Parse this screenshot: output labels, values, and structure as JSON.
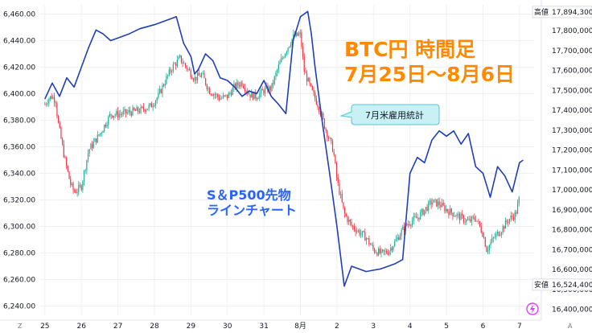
{
  "chart_data": {
    "type": "line",
    "title_lines": [
      "BTC円 時間足",
      "7月25日〜8月6日"
    ],
    "series": [
      {
        "name": "S＆P500先物 ラインチャート",
        "axis": "left",
        "color": "#1e3fb8",
        "x": [
          0,
          0.2,
          0.4,
          0.6,
          0.8,
          1.0,
          1.2,
          1.4,
          1.6,
          1.8,
          2.0,
          2.3,
          2.6,
          3.0,
          3.4,
          3.6,
          3.8,
          4.0,
          4.1,
          4.2,
          4.4,
          4.6,
          4.8,
          5.0,
          5.2,
          5.4,
          5.6,
          5.8,
          6.0,
          6.2,
          6.4,
          6.6,
          6.8,
          7.0,
          7.2,
          7.3,
          7.4,
          7.6,
          7.8,
          8.0,
          8.2,
          8.4,
          8.6,
          8.8,
          9.0,
          9.2,
          9.4,
          9.6,
          9.8,
          10.0,
          10.2,
          10.4,
          10.6,
          10.8,
          11.0,
          11.2,
          11.4,
          11.6,
          11.8,
          12.0,
          12.2,
          12.4,
          12.6,
          12.8,
          13.0,
          13.1
        ],
        "y": [
          6396,
          6408,
          6398,
          6412,
          6405,
          6420,
          6435,
          6448,
          6445,
          6440,
          6442,
          6445,
          6449,
          6452,
          6456,
          6458,
          6438,
          6428,
          6415,
          6418,
          6430,
          6425,
          6412,
          6410,
          6405,
          6398,
          6402,
          6400,
          6410,
          6398,
          6392,
          6385,
          6440,
          6458,
          6462,
          6445,
          6420,
          6378,
          6340,
          6300,
          6255,
          6270,
          6268,
          6266,
          6267,
          6268,
          6270,
          6272,
          6275,
          6340,
          6352,
          6348,
          6365,
          6372,
          6368,
          6372,
          6362,
          6370,
          6345,
          6340,
          6322,
          6345,
          6338,
          6326,
          6348,
          6350
        ]
      }
    ],
    "candles": {
      "name": "BTC円 時間足",
      "axis": "right",
      "x_start": 0,
      "x_step": 0.037,
      "bull_color": "#22ab94",
      "bear_color": "#f23645",
      "closes_anchor": [
        [
          0,
          17430
        ],
        [
          0.1,
          17460
        ],
        [
          0.2,
          17470
        ],
        [
          0.3,
          17450
        ],
        [
          0.35,
          17350
        ],
        [
          0.4,
          17300
        ],
        [
          0.55,
          17150
        ],
        [
          0.7,
          17030
        ],
        [
          0.8,
          16990
        ],
        [
          0.9,
          17000
        ],
        [
          1.0,
          17020
        ],
        [
          1.2,
          17200
        ],
        [
          1.5,
          17280
        ],
        [
          1.8,
          17380
        ],
        [
          2.0,
          17380
        ],
        [
          2.3,
          17390
        ],
        [
          2.6,
          17400
        ],
        [
          2.9,
          17420
        ],
        [
          3.1,
          17470
        ],
        [
          3.3,
          17550
        ],
        [
          3.5,
          17620
        ],
        [
          3.7,
          17660
        ],
        [
          3.9,
          17610
        ],
        [
          4.1,
          17560
        ],
        [
          4.3,
          17580
        ],
        [
          4.5,
          17500
        ],
        [
          4.8,
          17460
        ],
        [
          5.0,
          17470
        ],
        [
          5.2,
          17520
        ],
        [
          5.4,
          17540
        ],
        [
          5.6,
          17480
        ],
        [
          5.8,
          17470
        ],
        [
          6.0,
          17500
        ],
        [
          6.2,
          17510
        ],
        [
          6.4,
          17620
        ],
        [
          6.6,
          17700
        ],
        [
          6.8,
          17770
        ],
        [
          7.0,
          17780
        ],
        [
          7.1,
          17600
        ],
        [
          7.3,
          17500
        ],
        [
          7.5,
          17420
        ],
        [
          7.7,
          17300
        ],
        [
          7.9,
          17200
        ],
        [
          8.0,
          17050
        ],
        [
          8.2,
          16880
        ],
        [
          8.4,
          16820
        ],
        [
          8.6,
          16790
        ],
        [
          8.8,
          16760
        ],
        [
          9.0,
          16700
        ],
        [
          9.2,
          16680
        ],
        [
          9.4,
          16690
        ],
        [
          9.6,
          16740
        ],
        [
          9.8,
          16800
        ],
        [
          10.0,
          16840
        ],
        [
          10.2,
          16860
        ],
        [
          10.4,
          16900
        ],
        [
          10.6,
          16940
        ],
        [
          10.8,
          16930
        ],
        [
          11.0,
          16900
        ],
        [
          11.2,
          16880
        ],
        [
          11.4,
          16860
        ],
        [
          11.6,
          16840
        ],
        [
          11.8,
          16860
        ],
        [
          12.0,
          16780
        ],
        [
          12.1,
          16700
        ],
        [
          12.3,
          16760
        ],
        [
          12.5,
          16800
        ],
        [
          12.7,
          16850
        ],
        [
          12.9,
          16880
        ],
        [
          13.0,
          16960
        ]
      ]
    },
    "x_axis": {
      "tick_labels": [
        "25",
        "26",
        "27",
        "28",
        "29",
        "30",
        "31",
        "8月",
        "2",
        "3",
        "4",
        "5",
        "6",
        "7"
      ],
      "tick_positions": [
        0,
        1,
        2,
        3,
        4,
        5,
        6,
        7,
        8,
        9,
        10,
        11,
        12,
        13
      ],
      "range": [
        -0.15,
        13.4
      ]
    },
    "y_axis_left": {
      "tick_labels": [
        "6,460.00",
        "6,440.00",
        "6,420.00",
        "6,400.00",
        "6,380.00",
        "6,360.00",
        "6,340.00",
        "6,320.00",
        "6,300.00",
        "6,280.00",
        "6,260.00",
        "6,240.00"
      ],
      "tick_values": [
        6460,
        6440,
        6420,
        6400,
        6380,
        6360,
        6340,
        6320,
        6300,
        6280,
        6260,
        6240
      ],
      "range": [
        6233,
        6467
      ]
    },
    "y_axis_right": {
      "tick_labels": [
        "17,800,000",
        "17,700,000",
        "17,600,000",
        "17,500,000",
        "17,400,000",
        "17,300,000",
        "17,200,000",
        "17,100,000",
        "17,000,000",
        "16,900,000",
        "16,800,000",
        "16,700,000",
        "16,600,000",
        "16,500,000",
        "16,400,000"
      ],
      "tick_values": [
        17800,
        17700,
        17600,
        17500,
        17400,
        17300,
        17200,
        17100,
        17000,
        16900,
        16800,
        16700,
        16600,
        16500,
        16400
      ],
      "range": [
        16370,
        17930
      ]
    },
    "high_tag": {
      "label": "高値",
      "value": "17,894,300",
      "level": 17894
    },
    "low_tag": {
      "label": "安値",
      "value": "16,524,400",
      "level": 16524
    },
    "callout": {
      "text": "7月米雇用統計",
      "at_x": 7.55,
      "at_y": 17300
    },
    "grid": true
  },
  "corner": {
    "left": "Z",
    "right": "A"
  },
  "icons": {
    "bolt": "lightning-icon"
  }
}
